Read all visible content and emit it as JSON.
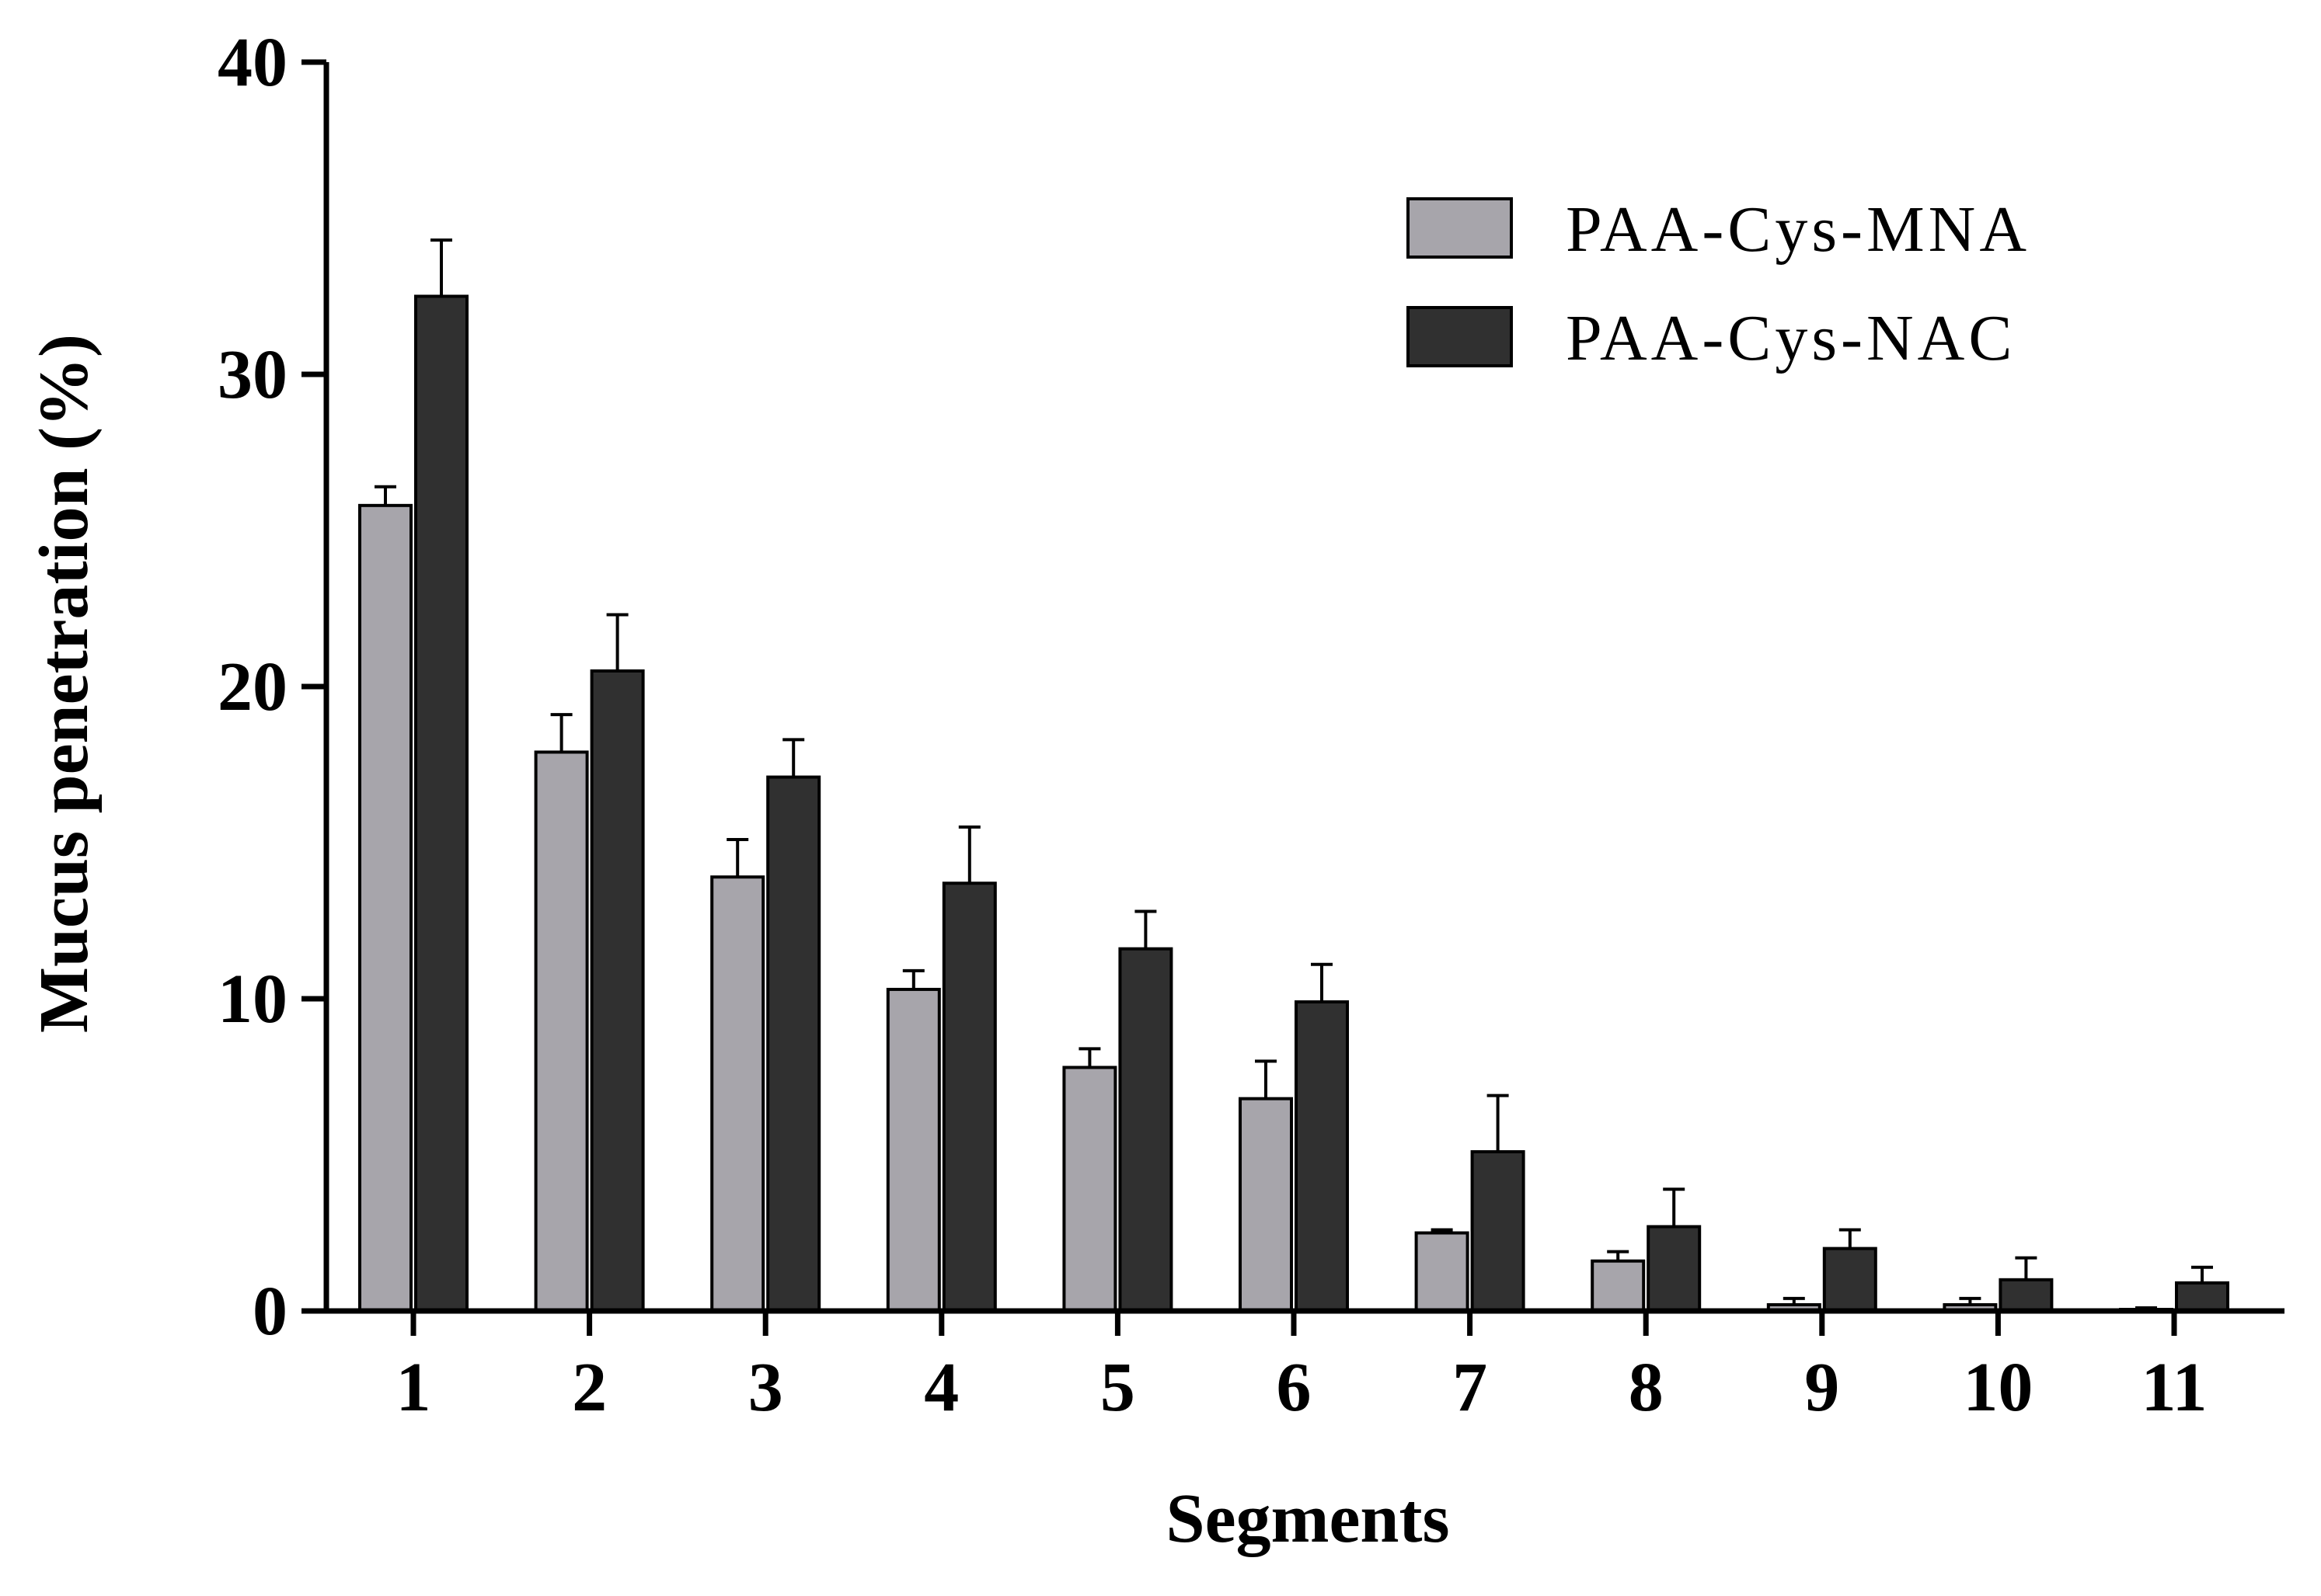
{
  "chart_data": {
    "type": "bar",
    "title": "",
    "xlabel": "Segments",
    "ylabel": "Mucus penetration (%)",
    "ylim": [
      0,
      40
    ],
    "yticks": [
      "0",
      "10",
      "20",
      "30",
      "40"
    ],
    "categories": [
      "1",
      "2",
      "3",
      "4",
      "5",
      "6",
      "7",
      "8",
      "9",
      "10",
      "11"
    ],
    "series": [
      {
        "name": "PAA-Cys-MNA",
        "color": "#a7a5ab",
        "values": [
          25.8,
          17.9,
          13.9,
          10.3,
          7.8,
          6.8,
          2.5,
          1.6,
          0.2,
          0.2,
          0.05
        ],
        "errors": [
          0.6,
          1.2,
          1.2,
          0.6,
          0.6,
          1.2,
          0.1,
          0.3,
          0.2,
          0.2,
          0.05
        ]
      },
      {
        "name": "PAA-Cys-NAC",
        "color": "#303030",
        "values": [
          32.5,
          20.5,
          17.1,
          13.7,
          11.6,
          9.9,
          5.1,
          2.7,
          2.0,
          1.0,
          0.9
        ],
        "errors": [
          1.8,
          1.8,
          1.2,
          1.8,
          1.2,
          1.2,
          1.8,
          1.2,
          0.6,
          0.7,
          0.5
        ]
      }
    ],
    "legend_position": "top-right",
    "grid": false
  }
}
